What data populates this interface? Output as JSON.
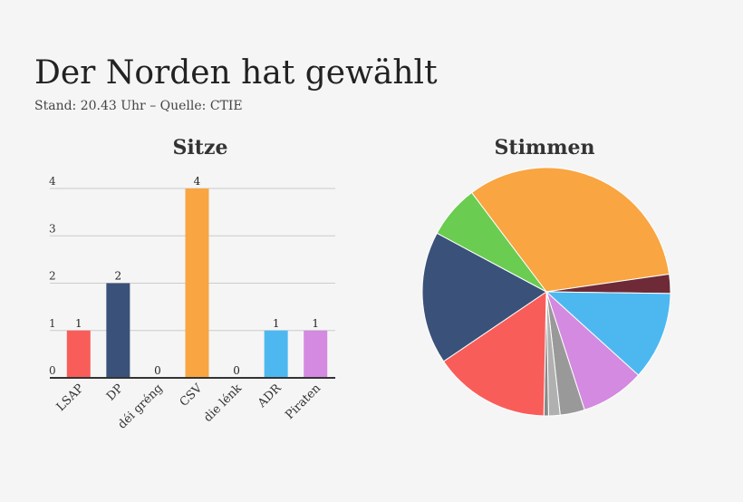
{
  "header": {
    "title": "Der Norden hat gewählt",
    "subtitle": "Stand: 20.43 Uhr – Quelle: CTIE"
  },
  "chart_data": [
    {
      "type": "bar",
      "title": "Sitze",
      "categories": [
        "LSAP",
        "DP",
        "déi gréng",
        "CSV",
        "die lénk",
        "ADR",
        "Piraten"
      ],
      "values": [
        1,
        2,
        0,
        4,
        0,
        1,
        1
      ],
      "colors": [
        "#f95d5a",
        "#3a517a",
        "#6acc50",
        "#f9a541",
        "#6e2a37",
        "#4db8f0",
        "#d38ae0"
      ],
      "ylim": [
        0,
        4
      ],
      "yticks": [
        0,
        1,
        2,
        3,
        4
      ],
      "grid": true
    },
    {
      "type": "pie",
      "title": "Stimmen",
      "values": [
        33,
        2.5,
        11.5,
        8.3,
        3.2,
        1.5,
        0.6,
        15.2,
        17.3,
        6.9
      ],
      "colors": [
        "#f9a541",
        "#6e2a37",
        "#4db8f0",
        "#d38ae0",
        "#999999",
        "#b0b0b0",
        "#888888",
        "#f95d5a",
        "#3a517a",
        "#6acc50"
      ]
    }
  ]
}
